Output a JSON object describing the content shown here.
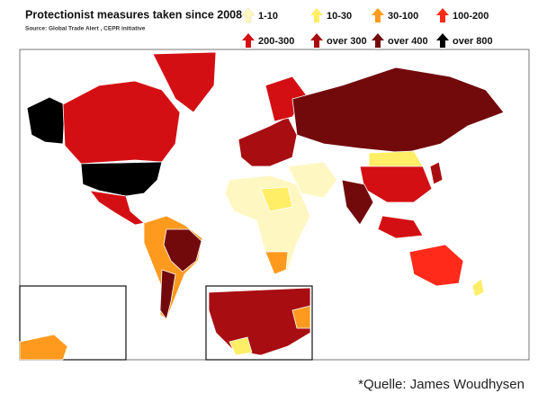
{
  "header": {
    "title": "Protectionist measures taken since 2008",
    "source": "Source: Global Trade Alert , CEPR initiative"
  },
  "legend": [
    {
      "label": "1-10",
      "color": "#fff7c2"
    },
    {
      "label": "10-30",
      "color": "#ffee66"
    },
    {
      "label": "30-100",
      "color": "#ff9a1f"
    },
    {
      "label": "100-200",
      "color": "#ff2a1a"
    },
    {
      "label": "200-300",
      "color": "#d40f14"
    },
    {
      "label": "over 300",
      "color": "#a80d12"
    },
    {
      "label": "over 400",
      "color": "#720a0c"
    },
    {
      "label": "over 800",
      "color": "#000000"
    }
  ],
  "credit": "*Quelle: James Woudhysen"
}
